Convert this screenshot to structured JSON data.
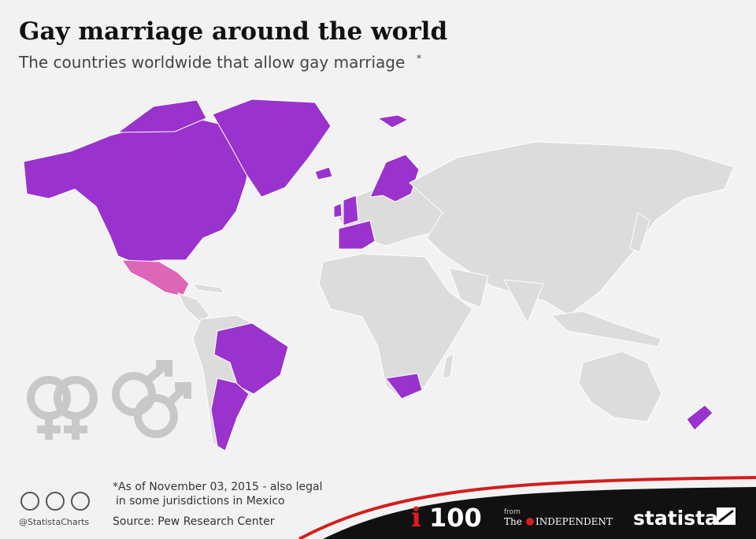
{
  "header": {
    "title": "Gay marriage around the world",
    "subtitle": "The countries worldwide that allow gay marriage",
    "subtitle_mark": "*"
  },
  "footer": {
    "note_line1": "*As of November 03, 2015 - also legal",
    "note_line2": "in some jurisdictions in Mexico",
    "source": "Source: Pew Research Center",
    "handle": "@StatistaCharts",
    "brand_i": "i",
    "brand_100": "100",
    "from": "from",
    "the": "The",
    "independent": "INDEPENDENT",
    "statista": "statista"
  }
}
